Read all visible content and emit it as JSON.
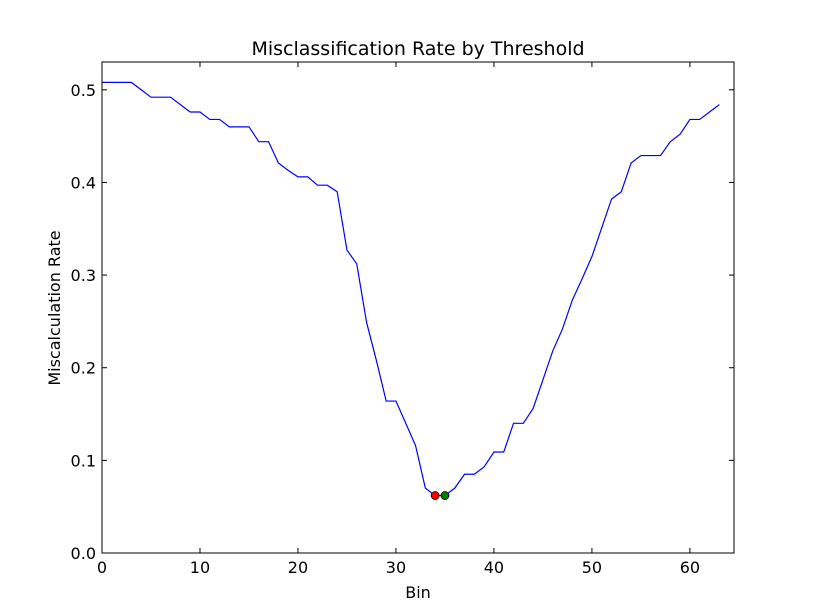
{
  "chart_data": {
    "type": "line",
    "title": "Misclassification Rate by Threshold",
    "xlabel": "Bin",
    "ylabel": "Miscalculation Rate",
    "xlim": [
      0,
      64.5
    ],
    "ylim": [
      0.0,
      0.53
    ],
    "xticks": [
      0,
      10,
      20,
      30,
      40,
      50,
      60
    ],
    "yticks": [
      0.0,
      0.1,
      0.2,
      0.3,
      0.4,
      0.5
    ],
    "ytick_labels": [
      "0.0",
      "0.1",
      "0.2",
      "0.3",
      "0.4",
      "0.5"
    ],
    "grid": false,
    "line_color": "#0000ff",
    "series": [
      {
        "x": [
          0,
          1,
          2,
          3,
          4,
          5,
          6,
          7,
          8,
          9,
          10,
          11,
          12,
          13,
          14,
          15,
          16,
          17,
          18,
          19,
          20,
          21,
          22,
          23,
          24,
          25,
          26,
          27,
          28,
          29,
          30,
          31,
          32,
          33,
          34,
          35,
          36,
          37,
          38,
          39,
          40,
          41,
          42,
          43,
          44,
          45,
          46,
          47,
          48,
          49,
          50,
          51,
          52,
          53,
          54,
          55,
          56,
          57,
          58,
          59,
          60,
          61,
          62,
          63
        ],
        "values": [
          0.508,
          0.508,
          0.508,
          0.508,
          0.5,
          0.492,
          0.492,
          0.492,
          0.484,
          0.476,
          0.476,
          0.468,
          0.468,
          0.46,
          0.46,
          0.46,
          0.444,
          0.444,
          0.421,
          0.413,
          0.406,
          0.406,
          0.397,
          0.397,
          0.39,
          0.327,
          0.312,
          0.249,
          0.208,
          0.164,
          0.164,
          0.14,
          0.116,
          0.07,
          0.062,
          0.062,
          0.07,
          0.085,
          0.085,
          0.093,
          0.109,
          0.109,
          0.14,
          0.14,
          0.156,
          0.187,
          0.218,
          0.242,
          0.273,
          0.296,
          0.32,
          0.351,
          0.382,
          0.39,
          0.421,
          0.429,
          0.429,
          0.429,
          0.444,
          0.452,
          0.468,
          0.468,
          0.476,
          0.484
        ]
      }
    ],
    "markers": [
      {
        "x": 34,
        "y": 0.062,
        "color": "#ff0000"
      },
      {
        "x": 35,
        "y": 0.062,
        "color": "#008000"
      }
    ]
  }
}
